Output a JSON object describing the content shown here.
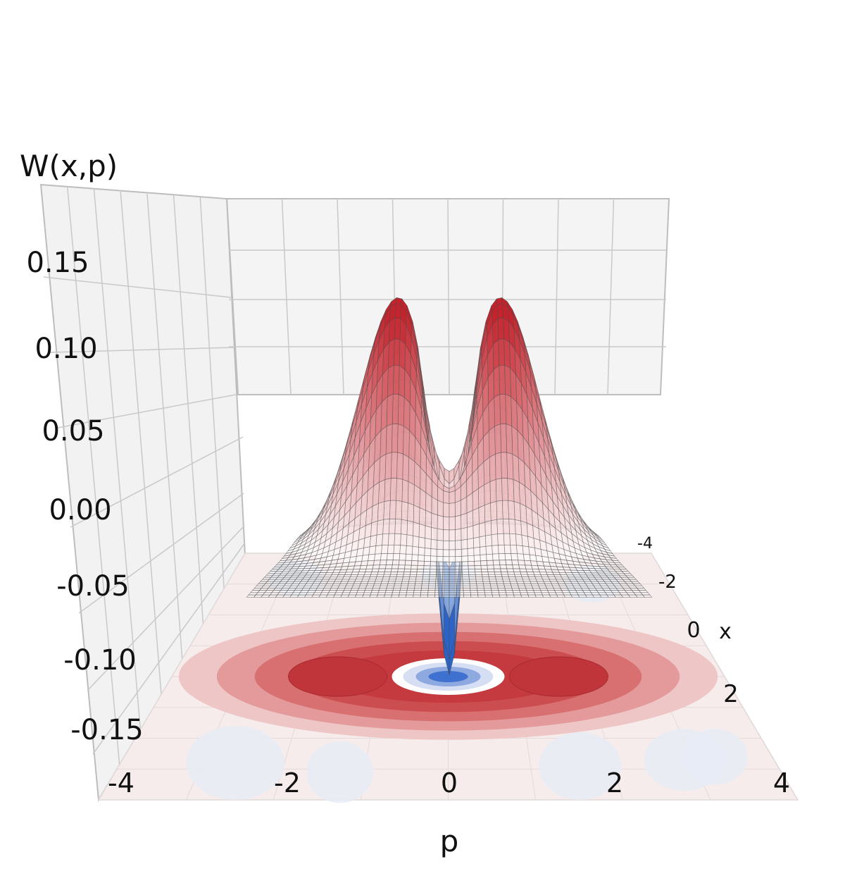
{
  "chart_data": {
    "type": "surface",
    "zlabel": "W(x,p)",
    "xlabel": "p",
    "ylabel": "x",
    "p_ticks": [
      "-4",
      "-2",
      "0",
      "2",
      "4"
    ],
    "x_ticks": [
      "-4",
      "-2",
      "0",
      "2"
    ],
    "z_ticks": [
      "0.15",
      "0.10",
      "0.05",
      "0.00",
      "-0.05",
      "-0.10",
      "-0.15"
    ],
    "p_range": [
      -4,
      4
    ],
    "x_range": [
      -4,
      4
    ],
    "z_range": [
      -0.18,
      0.2
    ],
    "features": [
      {
        "type": "peak",
        "p": -1.6,
        "x": 0.0,
        "W": 0.138
      },
      {
        "type": "peak",
        "p": 1.6,
        "x": 0.0,
        "W": 0.15
      },
      {
        "type": "minimum",
        "p": 0.0,
        "x": 0.0,
        "W": -0.045
      }
    ],
    "colormap": [
      "#2a63c9",
      "#ffffff",
      "#c4222b"
    ],
    "contour_projection": "floor",
    "grid": true
  }
}
